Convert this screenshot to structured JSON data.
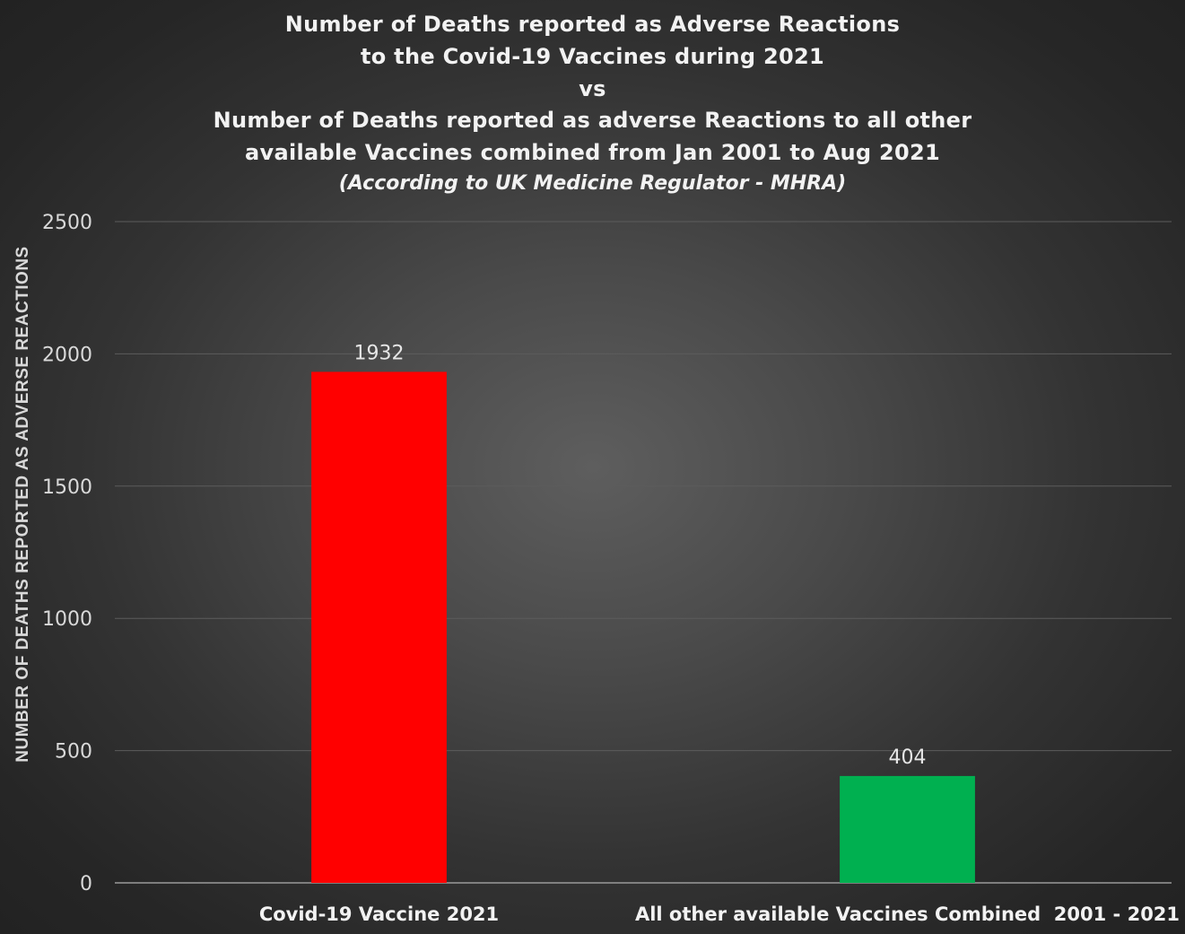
{
  "chart_data": {
    "type": "bar",
    "title_lines": [
      "Number of Deaths reported as Adverse Reactions",
      "to the Covid-19 Vaccines during 2021",
      "vs",
      "Number of Deaths reported as adverse Reactions to all other",
      "available Vaccines combined from Jan 2001 to Aug 2021"
    ],
    "subtitle": "(According to UK Medicine Regulator - MHRA)",
    "xlabel": "",
    "ylabel": "NUMBER OF DEATHS REPORTED AS ADVERSE REACTIONS",
    "categories": [
      "Covid-19 Vaccine 2021",
      "All other available Vaccines Combined  2001 - 2021"
    ],
    "values": [
      1932,
      404
    ],
    "data_labels": [
      "1932",
      "404"
    ],
    "colors": [
      "#ff0000",
      "#00b050"
    ],
    "ylim": [
      0,
      2500
    ],
    "yticks": [
      0,
      500,
      1000,
      1500,
      2000,
      2500
    ],
    "grid": true,
    "legend": "none"
  }
}
